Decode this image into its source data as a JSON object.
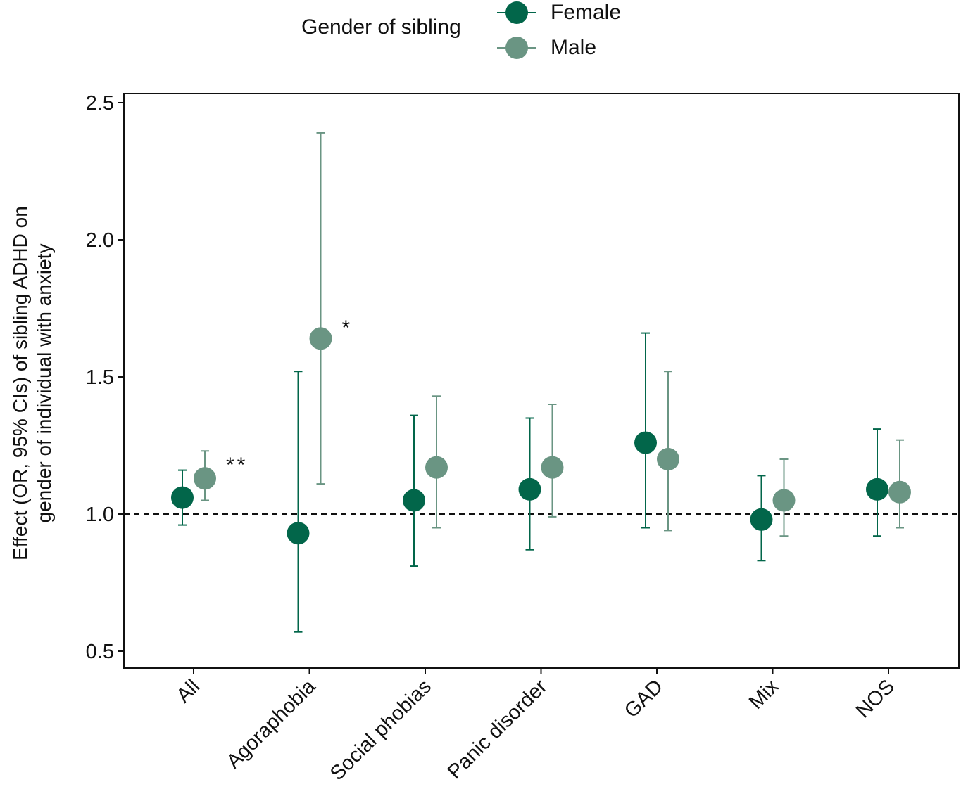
{
  "chart_data": {
    "type": "scatter",
    "subtype": "point-with-error-bars",
    "categories": [
      "All",
      "Agoraphobia",
      "Social phobias",
      "Panic disorder",
      "GAD",
      "Mix",
      "NOS"
    ],
    "ylabel_line1": "Effect (OR, 95% CIs) of sibling ADHD on",
    "ylabel_line2": "gender of individual with anxiety",
    "ylim": [
      0.45,
      2.55
    ],
    "yticks": [
      "0.5",
      "1.0",
      "1.5",
      "2.0",
      "2.5"
    ],
    "reference_line": 1.0,
    "legend": {
      "title": "Gender of sibling",
      "placement": "top-center"
    },
    "series": [
      {
        "name": "Female",
        "color": "#02664a",
        "values": [
          1.06,
          0.93,
          1.05,
          1.09,
          1.26,
          0.98,
          1.09
        ],
        "ci_low": [
          0.96,
          0.57,
          0.81,
          0.87,
          0.95,
          0.83,
          0.92
        ],
        "ci_high": [
          1.16,
          1.52,
          1.36,
          1.35,
          1.66,
          1.14,
          1.31
        ]
      },
      {
        "name": "Male",
        "color": "#6a9583",
        "values": [
          1.13,
          1.64,
          1.17,
          1.17,
          1.2,
          1.05,
          1.08
        ],
        "ci_low": [
          1.05,
          1.11,
          0.95,
          0.99,
          0.94,
          0.92,
          0.95
        ],
        "ci_high": [
          1.23,
          2.39,
          1.43,
          1.4,
          1.52,
          1.2,
          1.27
        ]
      }
    ],
    "annotations": [
      {
        "category": "All",
        "text": "**",
        "y": 1.2
      },
      {
        "category": "Agoraphobia",
        "text": "*",
        "y": 1.7
      }
    ]
  }
}
